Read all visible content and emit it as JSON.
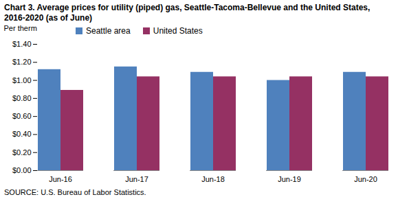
{
  "chart_data": {
    "type": "bar",
    "title": "Chart 3. Average prices for utility (piped) gas, Seattle-Tacoma-Bellevue and the United States, 2016-2020  (as of June)",
    "y_label": "Per therm",
    "source": "SOURCE: U.S. Bureau of Labor Statistics.",
    "categories": [
      "Jun-16",
      "Jun-17",
      "Jun-18",
      "Jun-19",
      "Jun-20"
    ],
    "series": [
      {
        "name": "Seattle area",
        "color": "#4f81bd",
        "values": [
          1.12,
          1.15,
          1.09,
          1.0,
          1.09
        ]
      },
      {
        "name": "United States",
        "color": "#953163",
        "values": [
          0.89,
          1.04,
          1.04,
          1.04,
          1.04
        ]
      }
    ],
    "ylim": [
      0,
      1.4
    ],
    "yticks": [
      {
        "value": 0,
        "label": "$0.00"
      },
      {
        "value": 0.2,
        "label": "$0.20"
      },
      {
        "value": 0.4,
        "label": "$0.40"
      },
      {
        "value": 0.6,
        "label": "$0.60"
      },
      {
        "value": 0.8,
        "label": "$0.80"
      },
      {
        "value": 1.0,
        "label": "$1.00"
      },
      {
        "value": 1.2,
        "label": "$1.20"
      },
      {
        "value": 1.4,
        "label": "$1.40"
      }
    ],
    "grid": false,
    "legend": "top"
  }
}
